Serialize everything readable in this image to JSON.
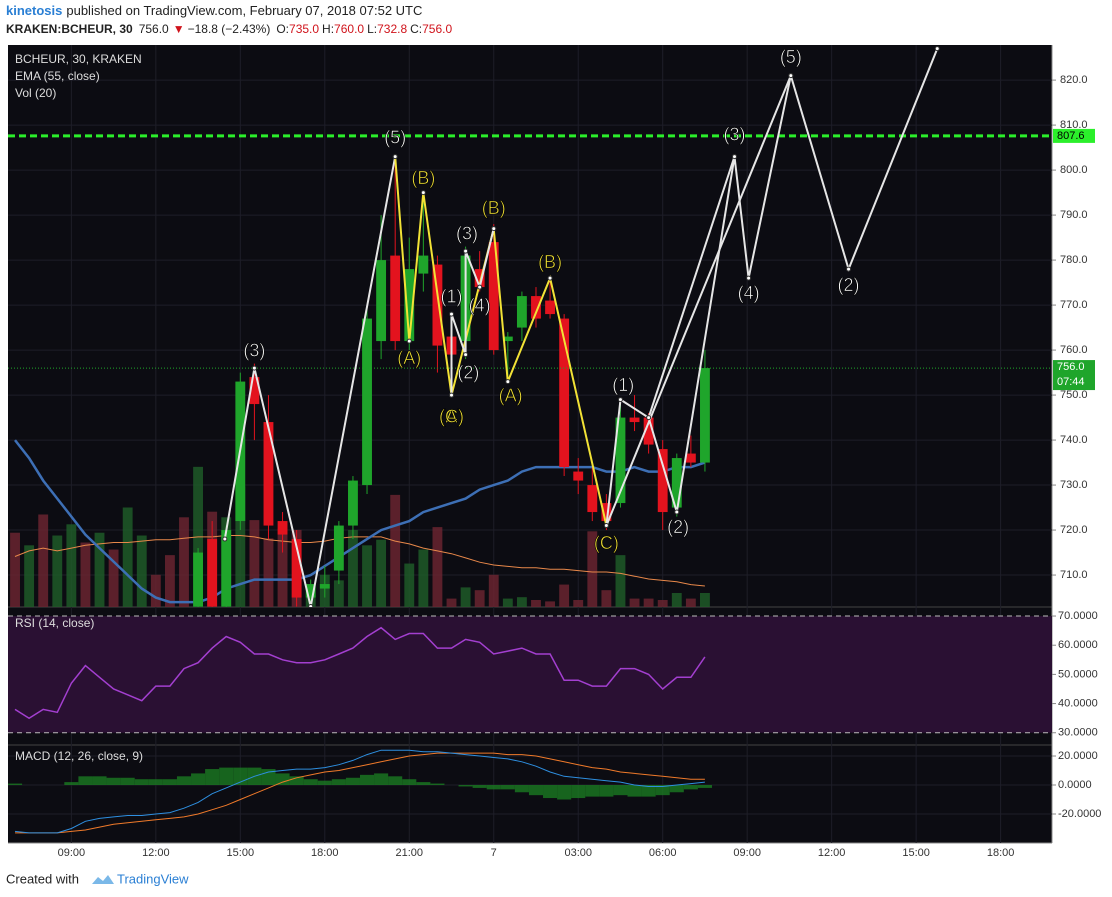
{
  "header": {
    "user": "kinetosis",
    "text": "published on TradingView.com, February 07, 2018 07:52 UTC",
    "symbol": "KRAKEN:BCHEUR, 30",
    "last": "756.0",
    "arrow": "▼",
    "change": "−18.8 (−2.43%)",
    "ohlc": [
      {
        "key": "O:",
        "value": "735.0"
      },
      {
        "key": "H:",
        "value": "760.0"
      },
      {
        "key": "L:",
        "value": "732.8"
      },
      {
        "key": "C:",
        "value": "756.0"
      }
    ]
  },
  "footer": {
    "text": "Created with",
    "brand": "TradingView"
  },
  "chart_data": {
    "type": "candlestick",
    "legend": [
      "BCHEUR, 30, KRAKEN",
      "EMA (55, close)",
      "Vol (20)"
    ],
    "xlim": [
      -0.5,
      73.65
    ],
    "xticks": [
      {
        "value": 4,
        "label": "09:00"
      },
      {
        "value": 10,
        "label": "12:00"
      },
      {
        "value": 16,
        "label": "15:00"
      },
      {
        "value": 22,
        "label": "18:00"
      },
      {
        "value": 28,
        "label": "21:00"
      },
      {
        "value": 34,
        "label": "7"
      },
      {
        "value": 40,
        "label": "03:00"
      },
      {
        "value": 46,
        "label": "06:00"
      },
      {
        "value": 52,
        "label": "09:00"
      },
      {
        "value": 58,
        "label": "12:00"
      },
      {
        "value": 64,
        "label": "15:00"
      },
      {
        "value": 70,
        "label": "18:00"
      }
    ],
    "ylim": [
      702.9,
      827.8
    ],
    "yticks": [
      {
        "value": 710,
        "label": "710.0"
      },
      {
        "value": 720,
        "label": "720.0"
      },
      {
        "value": 730,
        "label": "730.0"
      },
      {
        "value": 740,
        "label": "740.0"
      },
      {
        "value": 750,
        "label": "750.0"
      },
      {
        "value": 760,
        "label": "760.0"
      },
      {
        "value": 770,
        "label": "770.0"
      },
      {
        "value": 780,
        "label": "780.0"
      },
      {
        "value": 790,
        "label": "790.0"
      },
      {
        "value": 800,
        "label": "800.0"
      },
      {
        "value": 810,
        "label": "810.0"
      },
      {
        "value": 820,
        "label": "820.0"
      }
    ],
    "up_color": "#1fa52b",
    "down_color": "#e3131e",
    "open": [
      null,
      null,
      null,
      null,
      null,
      null,
      null,
      null,
      null,
      null,
      null,
      null,
      null,
      703,
      718,
      703,
      722,
      754,
      744,
      722,
      718,
      705,
      707,
      711,
      721,
      730,
      762,
      781,
      762,
      777,
      779,
      763,
      762,
      778,
      784,
      762,
      765,
      772,
      771,
      767,
      733,
      730,
      726,
      726,
      745,
      745,
      738,
      725,
      737,
      735
    ],
    "high": [
      null,
      null,
      null,
      null,
      null,
      null,
      null,
      null,
      null,
      null,
      null,
      null,
      null,
      716,
      722,
      721,
      755,
      757,
      750,
      724,
      720,
      709,
      712,
      722,
      732,
      769,
      790,
      803,
      785,
      795,
      781,
      768,
      783,
      782,
      788,
      764,
      773,
      774,
      776,
      768,
      736,
      734,
      728,
      749,
      750,
      746,
      740,
      737,
      741,
      760
    ],
    "low": [
      null,
      null,
      null,
      null,
      null,
      null,
      null,
      null,
      null,
      null,
      null,
      null,
      null,
      700,
      700,
      700,
      720,
      740,
      718,
      715,
      703,
      702,
      705,
      708,
      718,
      728,
      758,
      760,
      760,
      773,
      755,
      750,
      758,
      773,
      759,
      754,
      762,
      765,
      767,
      732,
      728,
      722,
      720,
      725,
      742,
      737,
      720,
      723,
      734,
      733
    ],
    "close": [
      null,
      null,
      null,
      null,
      null,
      null,
      null,
      null,
      null,
      null,
      null,
      null,
      null,
      715,
      703,
      720,
      753,
      748,
      721,
      719,
      705,
      708,
      708,
      721,
      731,
      767,
      780,
      762,
      778,
      781,
      761,
      759,
      781,
      774,
      760,
      763,
      772,
      767,
      768,
      734,
      731,
      724,
      722,
      745,
      744,
      739,
      724,
      736,
      735,
      756
    ],
    "ema": {
      "name": "EMA (55, close)",
      "color": "#3d6fb5",
      "values": [
        740,
        736,
        731,
        727,
        723,
        719,
        716,
        713,
        710,
        707,
        705,
        704,
        704,
        704,
        705,
        707,
        708,
        709,
        709,
        709,
        709,
        710,
        712,
        714,
        716,
        718,
        720,
        721,
        722,
        724,
        725,
        726,
        727,
        729,
        730,
        731,
        733,
        734,
        734,
        734,
        734,
        734,
        733,
        733,
        734,
        733,
        733,
        734,
        734,
        735
      ]
    },
    "volume_ylim": [
      0,
      401
    ],
    "volume": [
      53,
      44,
      66,
      51,
      59,
      46,
      53,
      41,
      71,
      51,
      23,
      37,
      64,
      100,
      68,
      64,
      86,
      62,
      49,
      56,
      55,
      9,
      23,
      19,
      55,
      44,
      48,
      80,
      31,
      41,
      57,
      6,
      14,
      12,
      23,
      6,
      7,
      5,
      4,
      16,
      5,
      54,
      12,
      37,
      6,
      6,
      5,
      10,
      6,
      10
    ],
    "volume_dir": [
      -1,
      1,
      -1,
      1,
      1,
      -1,
      1,
      -1,
      1,
      1,
      -1,
      -1,
      -1,
      1,
      -1,
      1,
      1,
      -1,
      -1,
      -1,
      -1,
      1,
      1,
      1,
      1,
      1,
      1,
      -1,
      1,
      1,
      -1,
      -1,
      1,
      -1,
      -1,
      1,
      1,
      -1,
      -1,
      -1,
      -1,
      -1,
      -1,
      1,
      -1,
      -1,
      -1,
      1,
      -1,
      1
    ],
    "volume_colors": {
      "up": "#1e5a28",
      "down": "#6a2430"
    },
    "volume_ma": {
      "color": "#e8884a",
      "values": [
        36,
        40,
        42,
        40,
        42,
        44,
        45,
        46,
        46,
        47,
        48,
        48,
        49,
        50,
        50,
        51,
        51,
        50,
        48,
        47,
        46,
        46,
        47,
        49,
        50,
        50,
        50,
        47,
        45,
        42,
        40,
        38,
        35,
        32,
        30,
        29,
        28,
        28,
        27,
        27,
        26,
        25,
        25,
        24,
        22,
        20,
        19,
        18,
        16,
        15
      ]
    },
    "level": {
      "value": 807.6,
      "label": "807.6",
      "color": "#2bef2b"
    },
    "price_line": {
      "value": 756,
      "label": "756.0",
      "countdown": "07:44",
      "color": "#1fa52b"
    },
    "waves": [
      {
        "color": "#e6e6e6",
        "points": [
          [
            14.9,
            718
          ],
          [
            17,
            756
          ],
          [
            21,
            703
          ],
          [
            27,
            803
          ]
        ]
      },
      {
        "color": "#f2e236",
        "points": [
          [
            27,
            803
          ],
          [
            28,
            762
          ],
          [
            29,
            795
          ],
          [
            31,
            750
          ],
          [
            34,
            787
          ],
          [
            35,
            753
          ],
          [
            38,
            776
          ],
          [
            42,
            721
          ]
        ]
      },
      {
        "color": "#e6e6e6",
        "points": [
          [
            31,
            750
          ],
          [
            31,
            768
          ],
          [
            32,
            759
          ],
          [
            32,
            782
          ],
          [
            33,
            774
          ],
          [
            34,
            787
          ]
        ]
      },
      {
        "color": "#e6e6e6",
        "points": [
          [
            42,
            721
          ],
          [
            43,
            749
          ],
          [
            45,
            745
          ],
          [
            47,
            724
          ],
          [
            51.1,
            803
          ],
          [
            52.1,
            776
          ],
          [
            55.1,
            821
          ],
          [
            59.2,
            778
          ],
          [
            65.5,
            827
          ]
        ]
      },
      {
        "color": "#e6e6e6",
        "points": [
          [
            42,
            721
          ],
          [
            55.1,
            821
          ]
        ]
      },
      {
        "color": "#e6e6e6",
        "points": [
          [
            45,
            745
          ],
          [
            51.1,
            803
          ]
        ]
      }
    ],
    "annotations": [
      {
        "text": "(3)",
        "x": 17,
        "y": 759.6,
        "color": "#ffffff"
      },
      {
        "text": "(5)",
        "x": 27,
        "y": 807,
        "color": "#ffffff"
      },
      {
        "text": "(B)",
        "x": 29,
        "y": 798,
        "color": "#f2e236"
      },
      {
        "text": "(A)",
        "x": 28,
        "y": 758,
        "color": "#f2e236"
      },
      {
        "text": "(1)",
        "x": 31,
        "y": 771.6,
        "color": "#ffffff"
      },
      {
        "text": "(3)",
        "x": 32.1,
        "y": 785.6,
        "color": "#ffffff"
      },
      {
        "text": "(4)",
        "x": 33,
        "y": 769.6,
        "color": "#ffffff"
      },
      {
        "text": "(2)",
        "x": 32.2,
        "y": 754.7,
        "color": "#ffffff"
      },
      {
        "text": "(A)",
        "x": 31,
        "y": 745,
        "color": "#f2e236"
      },
      {
        "text": "(C)",
        "x": 31,
        "y": 745,
        "color": "#f2e236"
      },
      {
        "text": "(B)",
        "x": 34,
        "y": 791.3,
        "color": "#f2e236"
      },
      {
        "text": "(A)",
        "x": 35.2,
        "y": 749.6,
        "color": "#f2e236"
      },
      {
        "text": "(B)",
        "x": 38,
        "y": 779.3,
        "color": "#f2e236"
      },
      {
        "text": "(C)",
        "x": 42,
        "y": 716.9,
        "color": "#f2e236"
      },
      {
        "text": "(1)",
        "x": 43.2,
        "y": 752,
        "color": "#ffffff"
      },
      {
        "text": "(2)",
        "x": 47.1,
        "y": 720.4,
        "color": "#ffffff"
      },
      {
        "text": "(3)",
        "x": 51.1,
        "y": 807.6,
        "color": "#ffffff"
      },
      {
        "text": "(4)",
        "x": 52.1,
        "y": 772.4,
        "color": "#ffffff"
      },
      {
        "text": "(5)",
        "x": 55.1,
        "y": 824.9,
        "color": "#ffffff"
      },
      {
        "text": "(2)",
        "x": 59.2,
        "y": 774.2,
        "color": "#ffffff"
      }
    ],
    "rsi": {
      "name": "RSI (14, close)",
      "color": "#a33fd0",
      "ylim": [
        25.8,
        73.1
      ],
      "yticks": [
        {
          "value": 70,
          "label": "70.0000"
        },
        {
          "value": 60,
          "label": "60.0000"
        },
        {
          "value": 50,
          "label": "50.0000"
        },
        {
          "value": 40,
          "label": "40.0000"
        },
        {
          "value": 30,
          "label": "30.0000"
        }
      ],
      "band": [
        30,
        70
      ],
      "values": [
        38,
        35,
        38,
        37,
        47,
        53,
        49,
        45,
        43,
        41,
        46,
        46,
        52,
        54,
        59,
        63,
        61,
        57,
        57,
        55,
        54,
        54,
        55,
        57,
        59,
        63,
        66,
        62,
        64,
        64,
        59,
        59,
        62,
        61,
        57,
        58,
        59,
        57,
        57,
        48,
        48,
        46,
        46,
        52,
        52,
        50,
        45,
        49,
        49,
        56
      ]
    },
    "macd": {
      "name": "MACD (12, 26, close, 9)",
      "ylim": [
        -40,
        27.6
      ],
      "yticks": [
        {
          "value": 20,
          "label": "20.0000"
        },
        {
          "value": 0,
          "label": "0.0000"
        },
        {
          "value": -20,
          "label": "-20.0000"
        }
      ],
      "macd": {
        "color": "#2e8fe0",
        "values": [
          -32,
          -33,
          -33,
          -33,
          -30,
          -25,
          -23,
          -22,
          -21,
          -21,
          -20,
          -19,
          -16,
          -12,
          -6,
          -2,
          2,
          6,
          9,
          10,
          11,
          11,
          12,
          14,
          17,
          21,
          24,
          24,
          24,
          23,
          23,
          22,
          21,
          20,
          19,
          18,
          16,
          13,
          9,
          6,
          5,
          4,
          3,
          2,
          0,
          -1,
          -1,
          0,
          1,
          2
        ]
      },
      "signal": {
        "color": "#f07a2a",
        "values": [
          -33,
          -33,
          -33,
          -33,
          -32,
          -31,
          -29,
          -27,
          -26,
          -25,
          -24,
          -23,
          -22,
          -20,
          -17,
          -14,
          -10,
          -6,
          -2,
          2,
          5,
          7,
          9,
          10,
          12,
          14,
          16,
          18,
          20,
          21,
          22,
          22,
          22,
          22,
          22,
          21,
          21,
          20,
          18,
          16,
          14,
          12,
          11,
          9,
          8,
          7,
          6,
          5,
          4,
          4
        ]
      },
      "hist": {
        "color": "#1a7a22",
        "values": [
          1,
          0,
          0,
          0,
          2,
          6,
          6,
          5,
          5,
          4,
          4,
          4,
          6,
          8,
          11,
          12,
          12,
          12,
          11,
          8,
          6,
          4,
          3,
          4,
          5,
          7,
          8,
          6,
          4,
          2,
          1,
          0,
          -1,
          -2,
          -3,
          -3,
          -5,
          -7,
          -9,
          -10,
          -9,
          -8,
          -8,
          -7,
          -8,
          -8,
          -7,
          -5,
          -3,
          -2
        ]
      }
    }
  }
}
